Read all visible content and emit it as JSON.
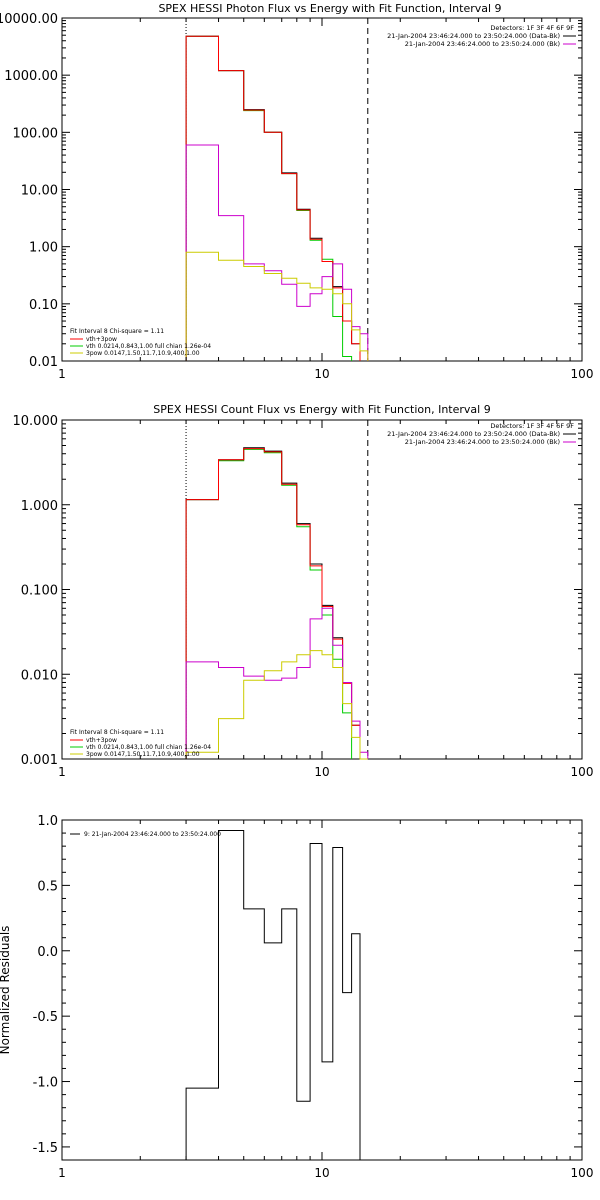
{
  "chart_data": [
    {
      "type": "line",
      "title": "SPEX HESSI Photon Flux vs Energy with Fit Function, Interval 9",
      "xscale": "log",
      "yscale": "log",
      "xlim": [
        1,
        100
      ],
      "ylim": [
        0.01,
        10000
      ],
      "xticks": [
        "1",
        "10",
        "100"
      ],
      "yticks": [
        "0.01",
        "0.10",
        "1.00",
        "10.00",
        "100.00",
        "1000.00",
        "10000.00"
      ],
      "info_lines": [
        {
          "text": "Detectors: 1F 3F 4F 6F 9F",
          "color": "#000000"
        },
        {
          "text": "21-Jan-2004 23:46:24.000 to 23:50:24.000 (Data-Bk)",
          "color": "#000000"
        },
        {
          "text": "21-Jan-2004 23:46:24.000 to 23:50:24.000 (Bk)",
          "color": "#cc00cc"
        }
      ],
      "fit_legend": [
        {
          "text": "Fit Interval  8    Chi-square = 1.11",
          "color": "#000000"
        },
        {
          "text": "vth+3pow",
          "color": "#ff0000"
        },
        {
          "text": "vth 0.0214,0.843,1.00   full chian 1.26e-04",
          "color": "#00cc00"
        },
        {
          "text": "3pow 0.0147,1.50,11.7,10.9,400,1.00",
          "color": "#cccc00"
        }
      ],
      "fit_range": [
        3,
        15
      ],
      "bin_edges": [
        3,
        4,
        5,
        6,
        7,
        8,
        9,
        10,
        11,
        12,
        13,
        14,
        15
      ],
      "series": [
        {
          "color": "#00cc00",
          "values": [
            4800,
            1200,
            240,
            100,
            19,
            4.3,
            1.3,
            0.6,
            0.06,
            0.012
          ]
        },
        {
          "color": "#000000",
          "values": [
            4800,
            1200,
            250,
            100,
            19.5,
            4.5,
            1.4,
            0.55,
            0.2,
            0.05,
            0.02
          ]
        },
        {
          "color": "#ff0000",
          "values": [
            4800,
            1200,
            245,
            100,
            19,
            4.4,
            1.35,
            0.55,
            0.19,
            0.05,
            0.02
          ]
        },
        {
          "color": "#cc00cc",
          "values": [
            60,
            3.5,
            0.5,
            0.38,
            0.22,
            0.09,
            0.15,
            0.3,
            0.5,
            0.18,
            0.04,
            0.03
          ]
        },
        {
          "color": "#cccc00",
          "values": [
            0.8,
            0.58,
            0.45,
            0.34,
            0.28,
            0.23,
            0.19,
            0.18,
            0.15,
            0.1,
            0.035,
            0.015
          ]
        }
      ]
    },
    {
      "type": "line",
      "title": "SPEX HESSI Count Flux vs Energy with Fit Function, Interval 9",
      "xscale": "log",
      "yscale": "log",
      "xlim": [
        1,
        100
      ],
      "ylim": [
        0.001,
        10
      ],
      "xticks": [
        "1",
        "10",
        "100"
      ],
      "yticks": [
        "0.001",
        "0.010",
        "0.100",
        "1.000",
        "10.000"
      ],
      "info_lines": [
        {
          "text": "Detectors: 1F 3F 4F 6F 9F",
          "color": "#000000"
        },
        {
          "text": "21-Jan-2004 23:46:24.000 to 23:50:24.000 (Data-Bk)",
          "color": "#000000"
        },
        {
          "text": "21-Jan-2004 23:46:24.000 to 23:50:24.000 (Bk)",
          "color": "#cc00cc"
        }
      ],
      "fit_legend": [
        {
          "text": "Fit Interval  8    Chi-square = 1.11",
          "color": "#000000"
        },
        {
          "text": "vth+3pow",
          "color": "#ff0000"
        },
        {
          "text": "vth 0.0214,0.843,1.00   full chian 1.26e-04",
          "color": "#00cc00"
        },
        {
          "text": "3pow 0.0147,1.50,11.7,10.9,400,1.00",
          "color": "#cccc00"
        }
      ],
      "fit_range": [
        3,
        15
      ],
      "bin_edges": [
        3,
        4,
        5,
        6,
        7,
        8,
        9,
        10,
        11,
        12,
        13,
        14,
        15
      ],
      "series": [
        {
          "color": "#00cc00",
          "values": [
            1.15,
            3.3,
            4.5,
            4.1,
            1.7,
            0.55,
            0.17,
            0.05,
            0.015,
            0.0035
          ]
        },
        {
          "color": "#000000",
          "values": [
            1.15,
            3.4,
            4.7,
            4.3,
            1.8,
            0.6,
            0.2,
            0.065,
            0.027,
            0.008,
            0.0025
          ]
        },
        {
          "color": "#ff0000",
          "values": [
            1.15,
            3.4,
            4.6,
            4.2,
            1.75,
            0.58,
            0.19,
            0.063,
            0.026,
            0.0078,
            0.0025
          ]
        },
        {
          "color": "#cc00cc",
          "values": [
            0.014,
            0.012,
            0.0095,
            0.0085,
            0.009,
            0.012,
            0.045,
            0.06,
            0.022,
            0.008,
            0.0028,
            0.0012
          ]
        },
        {
          "color": "#cccc00",
          "values": [
            0.0012,
            0.003,
            0.0085,
            0.011,
            0.014,
            0.017,
            0.019,
            0.017,
            0.012,
            0.0045,
            0.0018,
            0.001
          ]
        }
      ]
    },
    {
      "type": "line",
      "title": "",
      "ylabel": "Normalized Residuals",
      "xscale": "log",
      "yscale": "linear",
      "xlim": [
        1,
        100
      ],
      "ylim": [
        -1.6,
        1.0
      ],
      "xticks": [
        "1",
        "10",
        "100"
      ],
      "yticks": [
        "1.0",
        "0.5",
        "0.0",
        "-0.5",
        "-1.0",
        "-1.5"
      ],
      "legend": "9: 21-Jan-2004 23:46:24.000 to 23:50:24.000",
      "bin_edges": [
        3,
        4,
        5,
        6,
        7,
        8,
        9,
        10,
        11,
        12,
        13,
        14,
        15
      ],
      "residuals": [
        -1.05,
        0.92,
        0.32,
        0.06,
        0.32,
        -1.15,
        0.82,
        -0.85,
        0.79,
        -0.32,
        0.13
      ]
    }
  ]
}
